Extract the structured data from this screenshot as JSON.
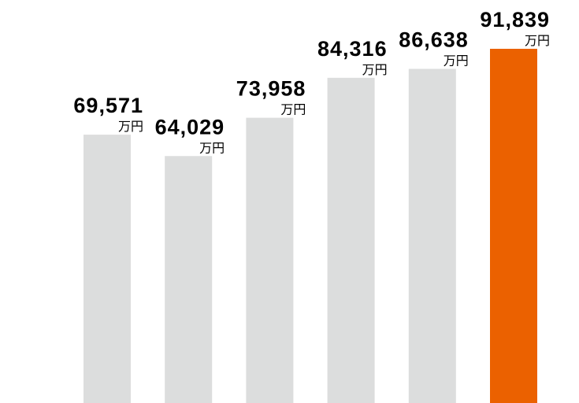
{
  "chart_data": {
    "type": "bar",
    "values": [
      69571,
      64029,
      73958,
      84316,
      86638,
      91839
    ],
    "value_labels": [
      "69,571",
      "64,029",
      "73,958",
      "84,316",
      "86,638",
      "91,839"
    ],
    "unit": "万円",
    "colors": [
      "#dcdddd",
      "#dcdddd",
      "#dcdddd",
      "#dcdddd",
      "#dcdddd",
      "#eb6100"
    ]
  }
}
